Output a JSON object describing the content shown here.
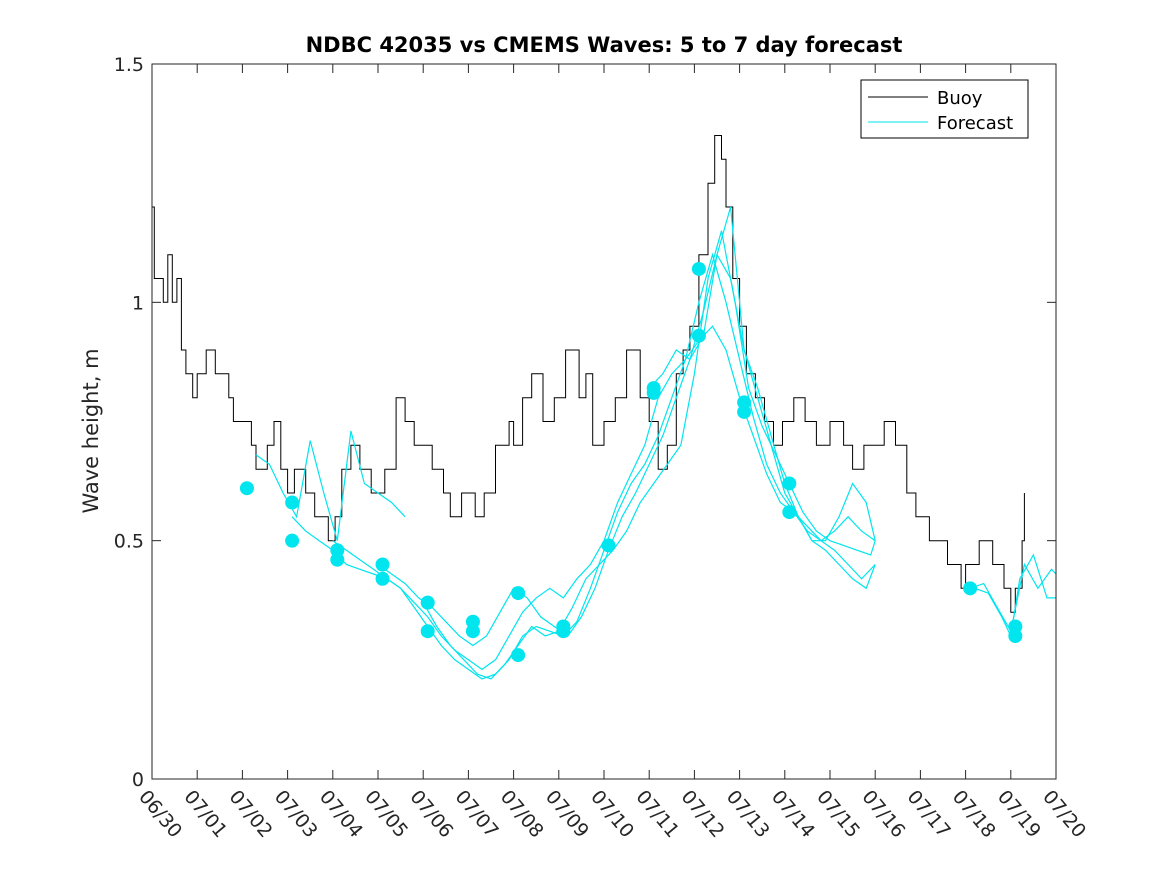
{
  "chart_data": {
    "type": "line",
    "title": "NDBC 42035 vs CMEMS Waves: 5 to 7 day forecast",
    "xlabel": "",
    "ylabel": "Wave height, m",
    "xlim": [
      0,
      20
    ],
    "ylim": [
      0,
      1.5
    ],
    "x_tick_labels": [
      "06/30",
      "07/01",
      "07/02",
      "07/03",
      "07/04",
      "07/05",
      "07/06",
      "07/07",
      "07/08",
      "07/09",
      "07/10",
      "07/11",
      "07/12",
      "07/13",
      "07/14",
      "07/15",
      "07/16",
      "07/17",
      "07/18",
      "07/19",
      "07/20"
    ],
    "y_ticks": [
      0,
      0.5,
      1,
      1.5
    ],
    "y_tick_labels": [
      "0",
      "0.5",
      "1",
      "1.5"
    ],
    "grid": false,
    "legend_position": "top-right",
    "colors": {
      "buoy": "#000000",
      "forecast": "#00e5ee"
    },
    "series": [
      {
        "name": "Buoy",
        "style": "step",
        "x": [
          0.0,
          0.05,
          0.25,
          0.35,
          0.45,
          0.55,
          0.65,
          0.75,
          0.9,
          1.0,
          1.2,
          1.4,
          1.7,
          1.8,
          2.2,
          2.3,
          2.55,
          2.7,
          2.85,
          3.0,
          3.15,
          3.4,
          3.6,
          3.9,
          4.05,
          4.2,
          4.4,
          4.6,
          4.85,
          5.15,
          5.4,
          5.6,
          5.8,
          6.2,
          6.45,
          6.6,
          6.85,
          7.15,
          7.35,
          7.6,
          7.9,
          8.0,
          8.2,
          8.4,
          8.65,
          8.9,
          9.15,
          9.45,
          9.6,
          9.75,
          10.0,
          10.25,
          10.5,
          10.8,
          11.0,
          11.2,
          11.4,
          11.6,
          11.75,
          11.9,
          12.1,
          12.3,
          12.45,
          12.6,
          12.7,
          12.85,
          13.0,
          13.15,
          13.35,
          13.55,
          13.75,
          13.95,
          14.2,
          14.45,
          14.7,
          15.0,
          15.3,
          15.5,
          15.75,
          16.0,
          16.2,
          16.45,
          16.7,
          16.9,
          17.2,
          17.6,
          17.9,
          18.0,
          18.3,
          18.6,
          18.85,
          19.0,
          19.1,
          19.25,
          19.3
        ],
        "y": [
          1.2,
          1.05,
          1.0,
          1.1,
          1.0,
          1.05,
          0.9,
          0.85,
          0.8,
          0.85,
          0.9,
          0.85,
          0.8,
          0.75,
          0.7,
          0.65,
          0.7,
          0.75,
          0.65,
          0.6,
          0.65,
          0.6,
          0.55,
          0.5,
          0.55,
          0.65,
          0.7,
          0.65,
          0.6,
          0.65,
          0.8,
          0.75,
          0.7,
          0.65,
          0.6,
          0.55,
          0.6,
          0.55,
          0.6,
          0.7,
          0.75,
          0.7,
          0.8,
          0.85,
          0.75,
          0.8,
          0.9,
          0.8,
          0.85,
          0.7,
          0.75,
          0.8,
          0.9,
          0.8,
          0.75,
          0.65,
          0.7,
          0.85,
          0.9,
          0.95,
          1.1,
          1.25,
          1.35,
          1.3,
          1.2,
          1.05,
          0.95,
          0.85,
          0.8,
          0.75,
          0.7,
          0.75,
          0.8,
          0.75,
          0.7,
          0.75,
          0.7,
          0.65,
          0.7,
          0.7,
          0.75,
          0.7,
          0.6,
          0.55,
          0.5,
          0.45,
          0.4,
          0.45,
          0.5,
          0.45,
          0.4,
          0.35,
          0.4,
          0.5,
          0.6
        ]
      },
      {
        "name": "Forecast",
        "runs": [
          {
            "x": [
              2.3,
              2.6,
              2.9,
              3.2,
              3.5,
              3.8,
              4.1,
              4.4,
              4.7,
              5.0,
              5.3,
              5.6
            ],
            "y": [
              0.68,
              0.66,
              0.6,
              0.55,
              0.71,
              0.6,
              0.5,
              0.73,
              0.62,
              0.6,
              0.58,
              0.55
            ]
          },
          {
            "x": [
              3.1,
              3.4,
              3.7,
              4.0,
              4.3,
              4.6,
              4.9,
              5.2,
              5.5,
              5.8,
              6.1,
              6.4,
              6.7,
              7.0,
              7.3,
              7.6,
              7.9,
              8.2,
              8.5,
              8.8,
              9.1,
              9.4,
              9.7,
              10.0,
              10.3,
              10.6,
              10.9,
              11.2,
              11.5,
              11.8,
              12.1,
              12.4,
              12.7,
              13.0,
              13.3,
              13.6,
              13.9,
              14.2,
              14.5,
              14.8,
              15.1,
              15.4,
              15.7,
              16.0
            ],
            "y": [
              0.55,
              0.52,
              0.5,
              0.48,
              0.45,
              0.44,
              0.43,
              0.42,
              0.4,
              0.37,
              0.34,
              0.3,
              0.27,
              0.25,
              0.23,
              0.25,
              0.3,
              0.35,
              0.38,
              0.4,
              0.38,
              0.42,
              0.45,
              0.5,
              0.58,
              0.64,
              0.7,
              0.8,
              0.85,
              0.88,
              0.92,
              0.95,
              0.9,
              0.8,
              0.72,
              0.64,
              0.58,
              0.56,
              0.52,
              0.5,
              0.52,
              0.55,
              0.52,
              0.5
            ]
          },
          {
            "x": [
              4.0,
              4.3,
              4.6,
              4.9,
              5.2,
              5.5,
              5.8,
              6.1,
              6.4,
              6.7,
              7.0,
              7.3,
              7.6,
              7.9,
              8.2,
              8.5,
              8.8,
              9.1,
              9.4,
              9.7,
              10.0,
              10.3,
              10.6,
              10.9,
              11.2,
              11.5,
              11.8,
              12.1,
              12.4,
              12.7,
              13.0,
              13.3,
              13.6,
              13.9,
              14.2,
              14.5,
              14.8,
              15.1,
              15.4,
              15.7,
              16.0
            ],
            "y": [
              0.5,
              0.48,
              0.46,
              0.44,
              0.42,
              0.4,
              0.36,
              0.32,
              0.28,
              0.25,
              0.23,
              0.21,
              0.22,
              0.25,
              0.3,
              0.32,
              0.31,
              0.3,
              0.33,
              0.4,
              0.48,
              0.56,
              0.62,
              0.66,
              0.72,
              0.8,
              0.88,
              1.0,
              1.1,
              1.0,
              0.88,
              0.76,
              0.66,
              0.6,
              0.56,
              0.53,
              0.5,
              0.48,
              0.45,
              0.42,
              0.45
            ]
          },
          {
            "x": [
              5.0,
              5.3,
              5.6,
              5.9,
              6.2,
              6.5,
              6.8,
              7.1,
              7.4,
              7.7,
              8.0,
              8.3,
              8.6,
              8.9,
              9.2,
              9.5,
              9.8,
              10.1,
              10.4,
              10.7,
              11.0,
              11.3,
              11.6,
              11.9,
              12.2,
              12.5,
              12.8,
              13.1,
              13.4,
              13.7,
              14.0,
              14.3,
              14.6,
              14.9,
              15.2,
              15.5,
              15.8,
              16.0
            ],
            "y": [
              0.45,
              0.43,
              0.41,
              0.38,
              0.36,
              0.33,
              0.3,
              0.28,
              0.3,
              0.35,
              0.4,
              0.38,
              0.34,
              0.32,
              0.3,
              0.34,
              0.4,
              0.48,
              0.55,
              0.6,
              0.66,
              0.72,
              0.8,
              0.88,
              0.98,
              1.1,
              1.05,
              0.9,
              0.8,
              0.7,
              0.6,
              0.55,
              0.5,
              0.5,
              0.55,
              0.62,
              0.58,
              0.5
            ]
          },
          {
            "x": [
              6.0,
              6.3,
              6.6,
              6.9,
              7.2,
              7.5,
              7.8,
              8.1,
              8.4,
              8.7,
              9.0,
              9.3,
              9.6,
              9.9,
              10.2,
              10.5,
              10.8,
              11.1,
              11.4,
              11.7,
              12.0,
              12.3,
              12.6,
              12.9,
              13.2,
              13.5,
              13.8,
              14.1,
              14.4,
              14.7,
              15.0,
              15.3,
              15.6,
              15.9,
              16.0
            ],
            "y": [
              0.37,
              0.32,
              0.28,
              0.25,
              0.22,
              0.21,
              0.24,
              0.28,
              0.32,
              0.3,
              0.31,
              0.36,
              0.42,
              0.45,
              0.48,
              0.52,
              0.58,
              0.62,
              0.66,
              0.7,
              0.85,
              1.05,
              1.15,
              1.0,
              0.82,
              0.74,
              0.68,
              0.62,
              0.56,
              0.52,
              0.5,
              0.49,
              0.48,
              0.47,
              0.5
            ]
          },
          {
            "x": [
              11.0,
              11.3,
              11.6,
              11.9,
              12.2,
              12.5,
              12.8,
              13.1,
              13.4,
              13.7,
              14.0,
              14.3,
              14.6,
              14.9,
              15.2,
              15.5,
              15.8,
              16.0
            ],
            "y": [
              0.82,
              0.85,
              0.9,
              0.88,
              0.93,
              1.1,
              1.2,
              0.9,
              0.82,
              0.72,
              0.62,
              0.55,
              0.5,
              0.48,
              0.45,
              0.42,
              0.4,
              0.45
            ]
          },
          {
            "x": [
              18.1,
              18.4,
              18.7,
              19.0,
              19.3,
              19.6,
              19.9,
              20.0
            ],
            "y": [
              0.4,
              0.41,
              0.36,
              0.31,
              0.45,
              0.4,
              0.44,
              0.43
            ]
          },
          {
            "x": [
              18.2,
              18.5,
              18.8,
              19.0,
              19.2,
              19.5,
              19.8,
              20.0
            ],
            "y": [
              0.4,
              0.39,
              0.34,
              0.3,
              0.42,
              0.47,
              0.38,
              0.38
            ]
          }
        ],
        "markers": [
          {
            "x": 2.1,
            "y": 0.61
          },
          {
            "x": 3.1,
            "y": 0.58
          },
          {
            "x": 3.1,
            "y": 0.5
          },
          {
            "x": 4.1,
            "y": 0.48
          },
          {
            "x": 4.1,
            "y": 0.46
          },
          {
            "x": 5.1,
            "y": 0.45
          },
          {
            "x": 5.1,
            "y": 0.42
          },
          {
            "x": 6.1,
            "y": 0.37
          },
          {
            "x": 6.1,
            "y": 0.31
          },
          {
            "x": 7.1,
            "y": 0.33
          },
          {
            "x": 7.1,
            "y": 0.31
          },
          {
            "x": 8.1,
            "y": 0.39
          },
          {
            "x": 8.1,
            "y": 0.26
          },
          {
            "x": 9.1,
            "y": 0.32
          },
          {
            "x": 9.1,
            "y": 0.31
          },
          {
            "x": 10.1,
            "y": 0.49
          },
          {
            "x": 11.1,
            "y": 0.82
          },
          {
            "x": 11.1,
            "y": 0.81
          },
          {
            "x": 12.1,
            "y": 1.07
          },
          {
            "x": 12.1,
            "y": 0.93
          },
          {
            "x": 13.1,
            "y": 0.79
          },
          {
            "x": 13.1,
            "y": 0.77
          },
          {
            "x": 14.1,
            "y": 0.62
          },
          {
            "x": 14.1,
            "y": 0.56
          },
          {
            "x": 18.1,
            "y": 0.4
          },
          {
            "x": 19.1,
            "y": 0.32
          },
          {
            "x": 19.1,
            "y": 0.3
          }
        ]
      }
    ]
  }
}
